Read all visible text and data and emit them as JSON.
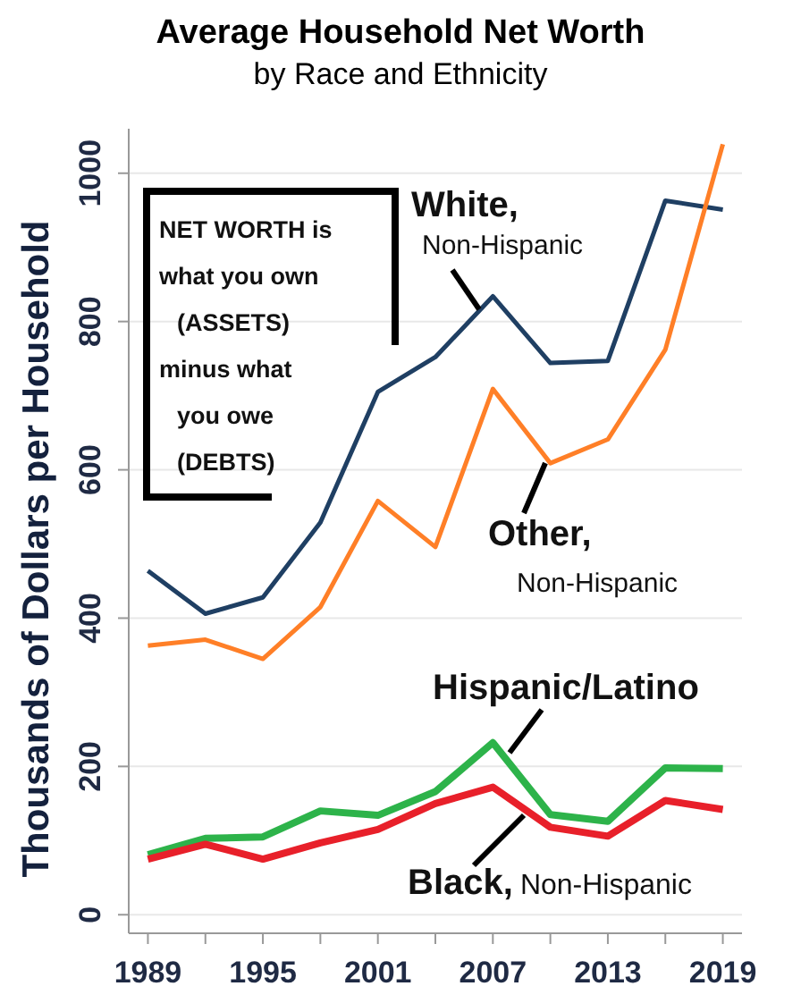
{
  "chart_data": {
    "type": "line",
    "title": "Average Household Net Worth",
    "subtitle": "by Race and Ethnicity",
    "ylabel": "Thousands of Dollars per Household",
    "x": [
      1989,
      1992,
      1995,
      1998,
      2001,
      2004,
      2007,
      2010,
      2013,
      2016,
      2019
    ],
    "series": [
      {
        "name": "White, Non-Hispanic",
        "color": "#1f3f63",
        "values": [
          464,
          406,
          428,
          529,
          705,
          752,
          834,
          744,
          747,
          963,
          951
        ]
      },
      {
        "name": "Other, Non-Hispanic",
        "color": "#ff7f27",
        "values": [
          363,
          371,
          345,
          415,
          558,
          496,
          709,
          609,
          641,
          762,
          1039
        ]
      },
      {
        "name": "Hispanic/Latino",
        "color": "#2db34a",
        "values": [
          81,
          103,
          105,
          140,
          134,
          166,
          232,
          135,
          126,
          198,
          197
        ]
      },
      {
        "name": "Black, Non-Hispanic",
        "color": "#e8202a",
        "values": [
          75,
          95,
          75,
          97,
          115,
          150,
          172,
          118,
          106,
          154,
          142
        ]
      }
    ],
    "xlim": [
      1988,
      2020
    ],
    "ylim": [
      -25,
      1060
    ],
    "xticks": [
      1989,
      {
        "value": 1992,
        "label": null
      },
      1995,
      {
        "value": 1998,
        "label": null
      },
      2001,
      {
        "value": 2004,
        "label": null
      },
      2007,
      {
        "value": 2010,
        "label": null
      },
      2013,
      {
        "value": 2016,
        "label": null
      },
      2019
    ],
    "yticks": [
      0,
      200,
      400,
      600,
      800,
      1000
    ],
    "grid": "y",
    "legend": false,
    "marker": "none",
    "line_style": "solid",
    "annotations": [
      "NET WORTH is\nwhat you own\n(ASSETS)\nminus what\nyou owe\n(DEBTS)"
    ]
  }
}
